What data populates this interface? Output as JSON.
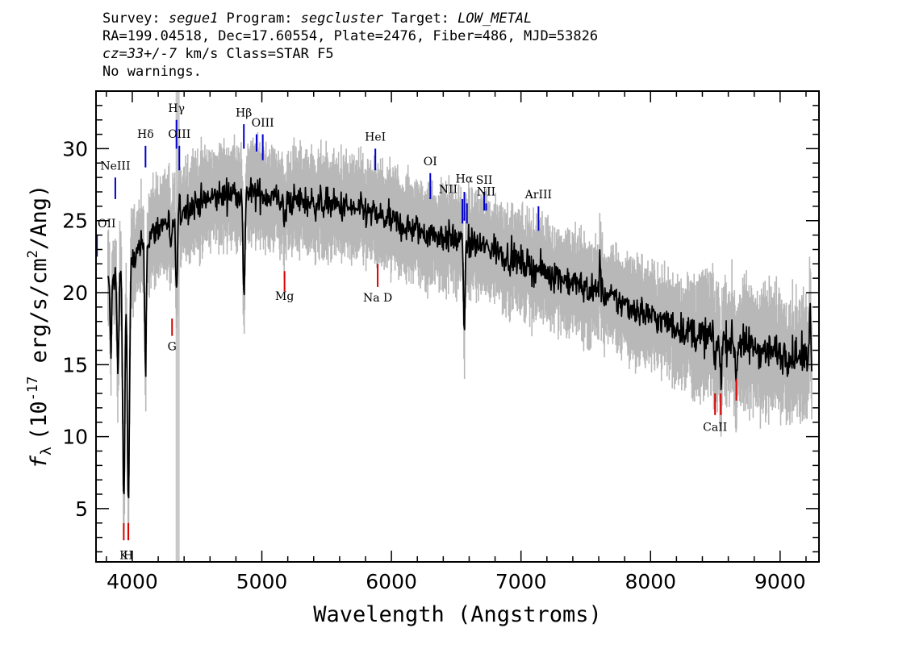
{
  "header": {
    "line1": {
      "survey_label": "Survey: ",
      "survey": "segue1",
      "program_label": " Program: ",
      "program": "segcluster",
      "target_label": " Target: ",
      "target": "LOW_METAL"
    },
    "line2": "RA=199.04518, Dec=17.60554, Plate=2476, Fiber=486, MJD=53826",
    "line3": {
      "cz": "cz=33+/-7",
      "rest": " km/s Class=STAR F5"
    },
    "line4": "No warnings."
  },
  "colors": {
    "flux": "#000000",
    "error": "#b8b8b8",
    "emission": "#0000cc",
    "absorption": "#dd0000",
    "mask": "#c8c8c8"
  },
  "chart_data": {
    "type": "line",
    "xlabel": "Wavelength (Angstroms)",
    "ylabel_symbol": "f",
    "ylabel_sub": "λ",
    "ylabel_text": "(10",
    "ylabel_exp": "-17",
    "ylabel_tail": " erg/s/cm",
    "ylabel_exp2": "2",
    "ylabel_end": "/Ang)",
    "xlim": [
      3720,
      9300
    ],
    "ylim": [
      1.3,
      34.0
    ],
    "xticks": [
      4000,
      5000,
      6000,
      7000,
      8000,
      9000
    ],
    "xtick_labels": [
      "4000",
      "5000",
      "6000",
      "7000",
      "8000",
      "9000"
    ],
    "yticks": [
      5,
      10,
      15,
      20,
      25,
      30
    ],
    "ytick_labels": [
      "5",
      "10",
      "15",
      "20",
      "25",
      "30"
    ],
    "mask_x": 4350,
    "continuum": [
      [
        3800,
        20.5
      ],
      [
        3900,
        21.5
      ],
      [
        4000,
        22.2
      ],
      [
        4100,
        23.5
      ],
      [
        4200,
        24.5
      ],
      [
        4300,
        25.2
      ],
      [
        4400,
        25.8
      ],
      [
        4500,
        26.2
      ],
      [
        4600,
        26.5
      ],
      [
        4700,
        26.8
      ],
      [
        4800,
        27.0
      ],
      [
        4900,
        26.9
      ],
      [
        5000,
        26.8
      ],
      [
        5100,
        26.6
      ],
      [
        5200,
        26.4
      ],
      [
        5300,
        26.4
      ],
      [
        5400,
        26.2
      ],
      [
        5500,
        26.2
      ],
      [
        5600,
        26.0
      ],
      [
        5700,
        25.8
      ],
      [
        5800,
        25.6
      ],
      [
        5900,
        25.3
      ],
      [
        6000,
        25.0
      ],
      [
        6100,
        24.6
      ],
      [
        6200,
        24.3
      ],
      [
        6300,
        24.1
      ],
      [
        6400,
        23.9
      ],
      [
        6500,
        23.7
      ],
      [
        6600,
        23.5
      ],
      [
        6700,
        23.2
      ],
      [
        6800,
        23.0
      ],
      [
        6900,
        22.5
      ],
      [
        7000,
        22.1
      ],
      [
        7100,
        21.7
      ],
      [
        7200,
        21.4
      ],
      [
        7300,
        21.1
      ],
      [
        7400,
        20.7
      ],
      [
        7500,
        20.3
      ],
      [
        7600,
        20.0
      ],
      [
        7700,
        19.6
      ],
      [
        7800,
        19.2
      ],
      [
        7900,
        18.8
      ],
      [
        8000,
        18.4
      ],
      [
        8100,
        18.0
      ],
      [
        8200,
        17.6
      ],
      [
        8300,
        17.2
      ],
      [
        8400,
        17.0
      ],
      [
        8500,
        16.8
      ],
      [
        8600,
        16.6
      ],
      [
        8700,
        16.4
      ],
      [
        8800,
        16.2
      ],
      [
        8900,
        16.0
      ],
      [
        9000,
        15.8
      ],
      [
        9100,
        15.6
      ],
      [
        9200,
        15.4
      ]
    ],
    "absorption_features": [
      {
        "x": 3835,
        "depth": 5.0,
        "width": 8
      },
      {
        "x": 3889,
        "depth": 7.0,
        "width": 10
      },
      {
        "x": 3934,
        "depth": 16.0,
        "width": 12
      },
      {
        "x": 3970,
        "depth": 16.5,
        "width": 12
      },
      {
        "x": 4102,
        "depth": 8.5,
        "width": 9
      },
      {
        "x": 4300,
        "depth": 2.5,
        "width": 12
      },
      {
        "x": 4341,
        "depth": 6.0,
        "width": 9
      },
      {
        "x": 4861,
        "depth": 7.5,
        "width": 10
      },
      {
        "x": 5175,
        "depth": 1.5,
        "width": 15
      },
      {
        "x": 6563,
        "depth": 5.5,
        "width": 10
      },
      {
        "x": 8498,
        "depth": 1.5,
        "width": 10
      },
      {
        "x": 8542,
        "depth": 2.5,
        "width": 10
      },
      {
        "x": 8662,
        "depth": 2.0,
        "width": 10
      }
    ],
    "emission_features": [
      {
        "x": 7610,
        "height": 2.5,
        "width": 8
      },
      {
        "x": 9230,
        "height": 3.0,
        "width": 10
      }
    ],
    "noise_sigma": 1.4,
    "lines": [
      {
        "label": "OII",
        "x": 3727,
        "color": "emission",
        "y_top": 24.0,
        "y_bot": 22.5,
        "label_y": 24.1,
        "label_pos": "above"
      },
      {
        "label": "NeIII",
        "x": 3869,
        "color": "emission",
        "y_top": 28.0,
        "y_bot": 26.5,
        "label_y": 28.1,
        "label_pos": "above"
      },
      {
        "label": "Hδ",
        "x": 4102,
        "color": "emission",
        "y_top": 30.2,
        "y_bot": 28.7,
        "label_y": 30.3,
        "label_pos": "above"
      },
      {
        "label": "Hγ",
        "x": 4341,
        "color": "emission",
        "y_top": 32.0,
        "y_bot": 30.0,
        "label_y": 32.1,
        "label_pos": "above"
      },
      {
        "label": "OIII",
        "x": 4363,
        "color": "emission",
        "y_top": 30.2,
        "y_bot": 28.5,
        "label_y": 30.3,
        "label_pos": "above"
      },
      {
        "label": "Hβ",
        "x": 4861,
        "color": "emission",
        "y_top": 31.7,
        "y_bot": 30.0,
        "label_y": 31.8,
        "label_pos": "above"
      },
      {
        "label": "OIII",
        "x": 4959,
        "color": "emission",
        "y_top": 31.0,
        "y_bot": 29.8,
        "label_y": 0,
        "label_pos": "none"
      },
      {
        "label": "OIII",
        "x": 5007,
        "color": "emission",
        "y_top": 31.0,
        "y_bot": 29.2,
        "label_y": 31.1,
        "label_pos": "above"
      },
      {
        "label": "HeI",
        "x": 5876,
        "color": "emission",
        "y_top": 30.0,
        "y_bot": 28.5,
        "label_y": 30.1,
        "label_pos": "above"
      },
      {
        "label": "OI",
        "x": 6300,
        "color": "emission",
        "y_top": 28.3,
        "y_bot": 26.5,
        "label_y": 28.4,
        "label_pos": "above"
      },
      {
        "label": "NII",
        "x": 6548,
        "color": "emission",
        "y_top": 26.5,
        "y_bot": 24.8,
        "label_y": 26.7,
        "label_pos": "above-left"
      },
      {
        "label": "Hα",
        "x": 6563,
        "color": "emission",
        "y_top": 27.0,
        "y_bot": 25.0,
        "label_y": 27.2,
        "label_pos": "above"
      },
      {
        "label": "NII",
        "x": 6583,
        "color": "emission",
        "y_top": 26.2,
        "y_bot": 24.8,
        "label_y": 0,
        "label_pos": "none"
      },
      {
        "label": "SII",
        "x": 6716,
        "color": "emission",
        "y_top": 27.0,
        "y_bot": 25.7,
        "label_y": 27.1,
        "label_pos": "above"
      },
      {
        "label": "NII",
        "x": 6731,
        "color": "emission",
        "y_top": 26.2,
        "y_bot": 25.7,
        "label_y": 26.3,
        "label_pos": "above"
      },
      {
        "label": "ArIII",
        "x": 7135,
        "color": "emission",
        "y_top": 26.0,
        "y_bot": 24.3,
        "label_y": 26.1,
        "label_pos": "above"
      },
      {
        "label": "K",
        "x": 3934,
        "color": "absorption",
        "y_top": 4.0,
        "y_bot": 2.8,
        "label_y": 2.5,
        "label_pos": "below"
      },
      {
        "label": "H",
        "x": 3969,
        "color": "absorption",
        "y_top": 4.0,
        "y_bot": 2.8,
        "label_y": 2.5,
        "label_pos": "below"
      },
      {
        "label": "G",
        "x": 4307,
        "color": "absorption",
        "y_top": 18.2,
        "y_bot": 17.0,
        "label_y": 17.0,
        "label_pos": "below"
      },
      {
        "label": "Mg",
        "x": 5175,
        "color": "absorption",
        "y_top": 21.5,
        "y_bot": 20.1,
        "label_y": 20.5,
        "label_pos": "below"
      },
      {
        "label": "Na D",
        "x": 5894,
        "color": "absorption",
        "y_top": 22.0,
        "y_bot": 20.4,
        "label_y": 20.4,
        "label_pos": "below"
      },
      {
        "label": "CaII",
        "x": 8498,
        "color": "absorption",
        "y_top": 13.0,
        "y_bot": 11.5,
        "label_y": 11.4,
        "label_pos": "below"
      },
      {
        "label": "CaII",
        "x": 8542,
        "color": "absorption",
        "y_top": 13.0,
        "y_bot": 11.5,
        "label_y": 0,
        "label_pos": "none"
      },
      {
        "label": "CaII",
        "x": 8662,
        "color": "absorption",
        "y_top": 14.0,
        "y_bot": 12.5,
        "label_y": 0,
        "label_pos": "none"
      }
    ]
  }
}
